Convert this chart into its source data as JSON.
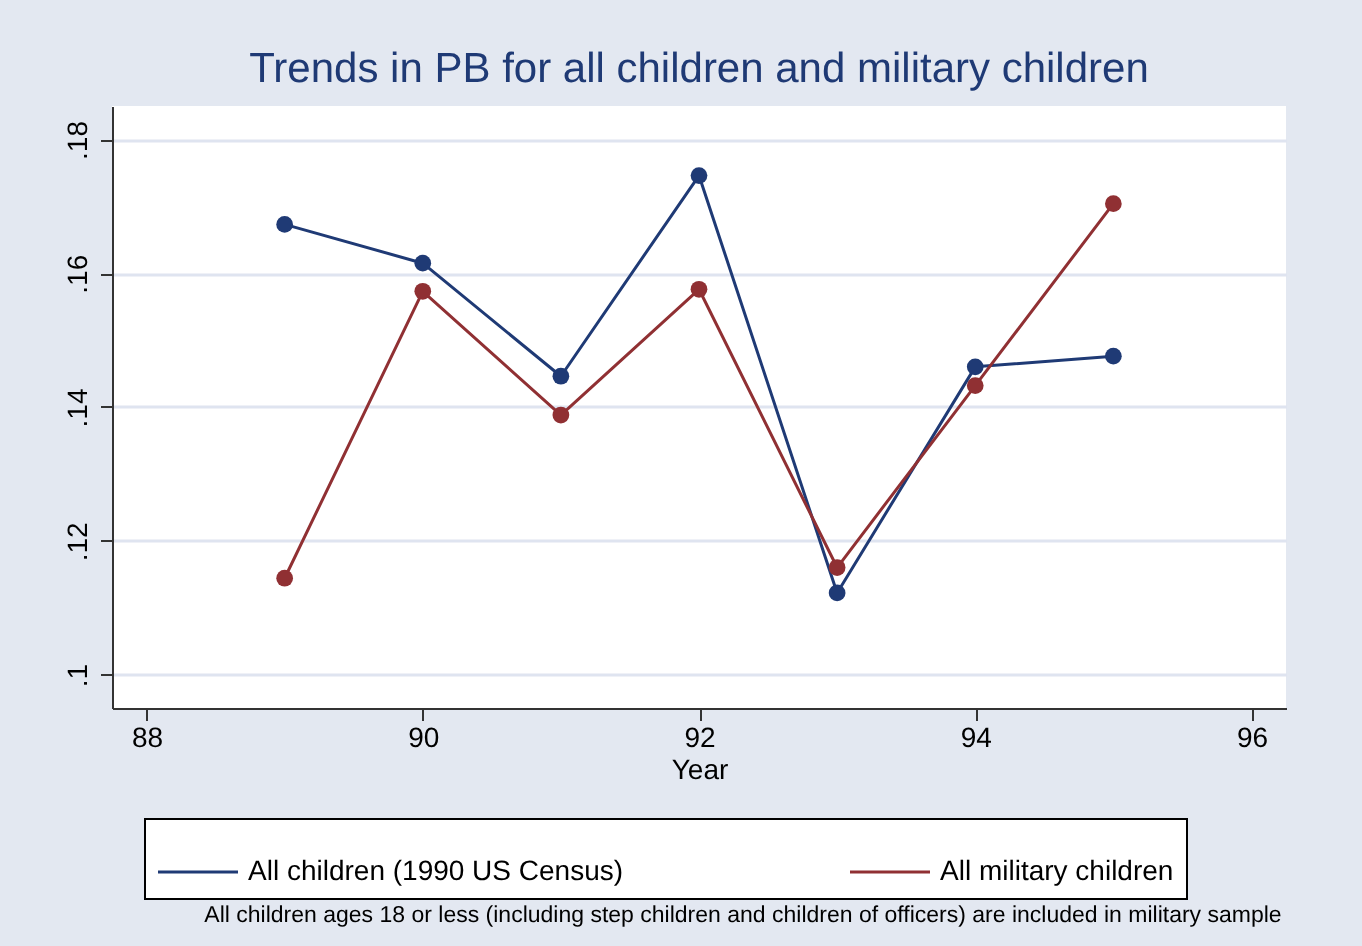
{
  "chart_data": {
    "type": "line",
    "title": "Trends in PB for all children and military children",
    "xlabel": "Year",
    "x": [
      89,
      90,
      91,
      92,
      93,
      94,
      95
    ],
    "series": [
      {
        "name": "All children (1990 US Census)",
        "color": "#1f3a75",
        "values": [
          0.1673,
          0.1615,
          0.1446,
          0.1746,
          0.1122,
          0.146,
          0.1476
        ]
      },
      {
        "name": "All military children",
        "color": "#903033",
        "values": [
          0.1144,
          0.1573,
          0.1388,
          0.1576,
          0.116,
          0.1432,
          0.1704
        ]
      }
    ],
    "xlim": [
      87.75,
      96.25
    ],
    "xticks": [
      88,
      90,
      92,
      94,
      96
    ],
    "ylim": [
      0.095,
      0.185
    ],
    "yticks": [
      {
        "value": 0.1,
        "label": ".1"
      },
      {
        "value": 0.12,
        "label": ".12"
      },
      {
        "value": 0.14,
        "label": ".14"
      },
      {
        "value": 0.16,
        "label": ".16"
      },
      {
        "value": 0.18,
        "label": ".18"
      }
    ],
    "grid": "y",
    "legend": "bottom",
    "marker": "circle",
    "line_style": "solid",
    "annotations": [
      "All children ages 18 or less (including step children and children of officers) are included in military sample"
    ]
  }
}
